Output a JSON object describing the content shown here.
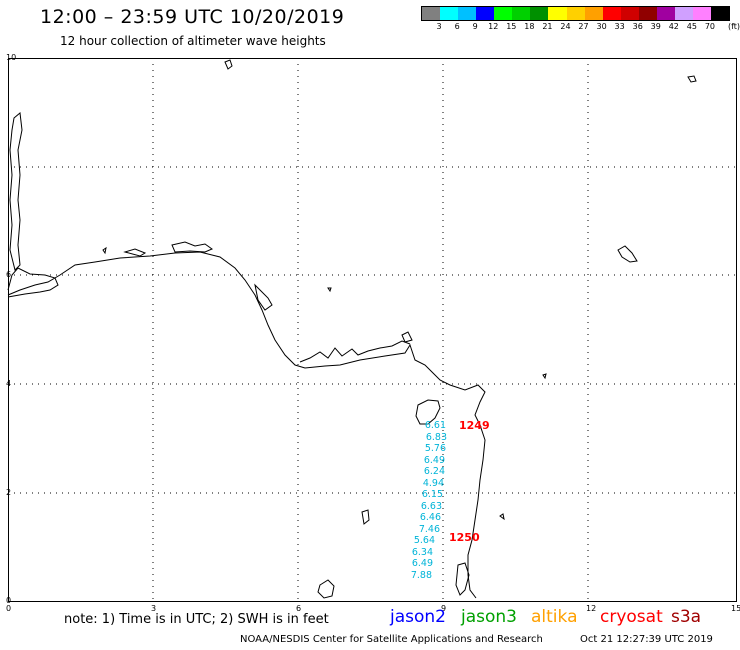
{
  "title": "12:00 – 23:59 UTC 10/20/2019",
  "subtitle": "12 hour collection of altimeter wave heights",
  "colorbar": {
    "colors": [
      "#808080",
      "#00ffff",
      "#00c0ff",
      "#0000ff",
      "#00ff00",
      "#00d000",
      "#009000",
      "#ffff00",
      "#ffd000",
      "#ffa000",
      "#ff0000",
      "#d00000",
      "#900000",
      "#a000a0",
      "#d0a0ff",
      "#ff80ff",
      "#000000"
    ],
    "labels": [
      "3",
      "6",
      "9",
      "12",
      "15",
      "18",
      "21",
      "24",
      "27",
      "30",
      "33",
      "36",
      "39",
      "42",
      "45",
      "70",
      "(ft)"
    ]
  },
  "axes": {
    "x_ticks": [
      "0",
      "3",
      "6",
      "9",
      "12",
      "15"
    ],
    "y_ticks": [
      "0",
      "2",
      "4",
      "6",
      "10"
    ]
  },
  "swh_values": [
    "6.61",
    "6.83",
    "5.76",
    "6.49",
    "6.24",
    "4.94",
    "6.15",
    "6.63",
    "6.46",
    "7.46",
    "5.64",
    "6.34",
    "6.49",
    "7.88"
  ],
  "time_labels": [
    "1249",
    "1250"
  ],
  "note": "note:  1) Time is in UTC;  2) SWH is in feet",
  "legend": [
    {
      "name": "jason2",
      "color": "#0000ff"
    },
    {
      "name": "jason3",
      "color": "#00a000"
    },
    {
      "name": "altika",
      "color": "#ffa000"
    },
    {
      "name": "cryosat",
      "color": "#ff0000"
    },
    {
      "name": "s3a",
      "color": "#a00000"
    }
  ],
  "credit": "NOAA/NESDIS Center for Satellite Applications and Research",
  "generated": "Oct 21 12:27:39 UTC 2019"
}
